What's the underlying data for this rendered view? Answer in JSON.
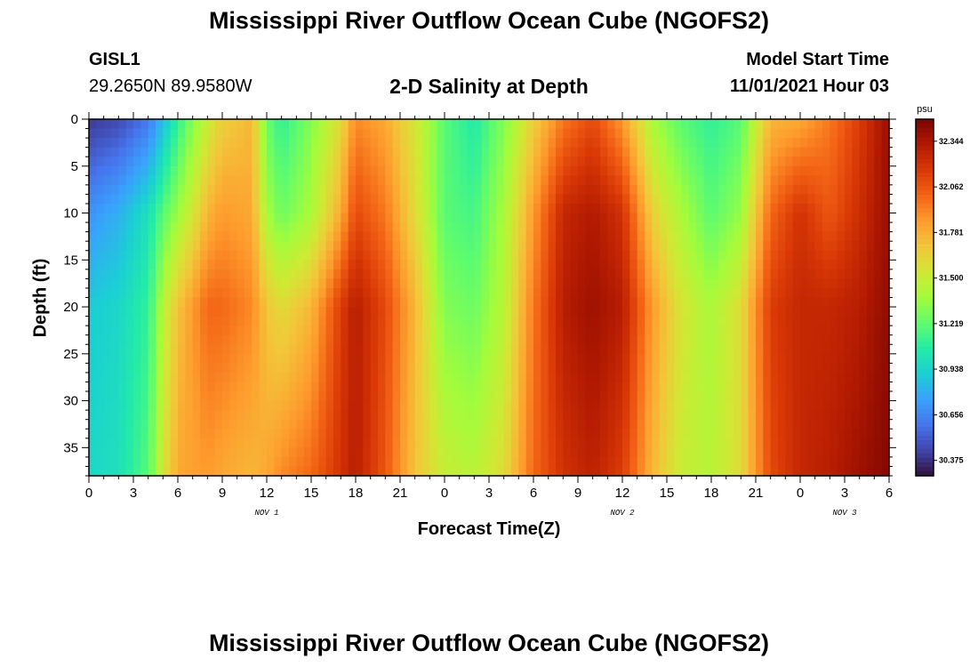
{
  "header": {
    "title": "Mississippi River Outflow Ocean Cube (NGOFS2)",
    "station_id": "GISL1",
    "station_coords": "29.2650N  89.9580W",
    "model_start_label": "Model Start Time",
    "model_start_value": "11/01/2021 Hour 03"
  },
  "footer": {
    "repeat_title": "Mississippi River Outflow Ocean Cube (NGOFS2)"
  },
  "colors": {
    "palette": [
      "#30123b",
      "#4145ab",
      "#4675ed",
      "#39a2fc",
      "#1bcfd4",
      "#24eca6",
      "#61fc6c",
      "#a4fc3b",
      "#d1e834",
      "#f3c63a",
      "#fe9b2d",
      "#f36315",
      "#d93806",
      "#b11901",
      "#7a0402"
    ]
  },
  "chart_data": {
    "type": "heatmap",
    "title": "2-D Salinity at Depth",
    "xlabel": "Forecast Time(Z)",
    "ylabel": "Depth (ft)",
    "x_ticks": [
      "0",
      "3",
      "6",
      "9",
      "12",
      "15",
      "18",
      "21",
      "0",
      "3",
      "6",
      "9",
      "12",
      "15",
      "18",
      "21",
      "0",
      "3",
      "6"
    ],
    "x_range_hours": [
      0,
      54
    ],
    "day_labels": [
      {
        "label": "NOV 1",
        "hour": 12
      },
      {
        "label": "NOV 2",
        "hour": 36
      },
      {
        "label": "NOV 3",
        "hour": 51
      }
    ],
    "y_ticks": [
      "0",
      "5",
      "10",
      "15",
      "20",
      "25",
      "30",
      "35"
    ],
    "y_tick_values": [
      0,
      5,
      10,
      15,
      20,
      25,
      30,
      35
    ],
    "y_range": [
      0,
      38
    ],
    "y_inverted": true,
    "colorbar": {
      "unit": "psu",
      "labels": [
        "32.344",
        "32.062",
        "31.781",
        "31.500",
        "31.219",
        "30.938",
        "30.656",
        "30.375"
      ],
      "range": [
        30.28,
        32.48
      ]
    },
    "salinity_anchors": {
      "depths": [
        0,
        10,
        20,
        38
      ],
      "hours": [
        0,
        2,
        4,
        5,
        6,
        8,
        9,
        11,
        12,
        13,
        15,
        17,
        18,
        20,
        22,
        24,
        26,
        28,
        30,
        32,
        34,
        36,
        38,
        40,
        42,
        44,
        46,
        48,
        50,
        52,
        54
      ],
      "values": [
        [
          30.4,
          30.45,
          30.6,
          30.85,
          31.1,
          31.5,
          31.65,
          31.75,
          31.25,
          31.1,
          31.3,
          31.6,
          31.9,
          31.8,
          31.55,
          31.2,
          31.05,
          31.3,
          31.65,
          31.95,
          32.1,
          31.85,
          31.4,
          31.2,
          31.1,
          31.2,
          31.75,
          31.8,
          31.95,
          32.15,
          32.4
        ],
        [
          30.7,
          30.8,
          31.0,
          31.2,
          31.35,
          31.75,
          31.85,
          31.8,
          31.4,
          31.25,
          31.4,
          31.8,
          32.1,
          31.95,
          31.6,
          31.2,
          31.15,
          31.4,
          31.85,
          32.25,
          32.32,
          32.2,
          31.65,
          31.4,
          31.2,
          31.35,
          32.0,
          32.2,
          32.05,
          32.22,
          32.4
        ],
        [
          30.9,
          30.95,
          31.1,
          31.45,
          31.7,
          32.0,
          32.0,
          31.9,
          31.7,
          31.6,
          31.75,
          32.15,
          32.3,
          32.1,
          31.75,
          31.3,
          31.25,
          31.45,
          31.95,
          32.3,
          32.38,
          32.3,
          31.85,
          31.55,
          31.4,
          31.6,
          32.15,
          32.25,
          32.25,
          32.3,
          32.42
        ],
        [
          30.95,
          31.0,
          31.2,
          31.55,
          31.8,
          31.85,
          31.8,
          31.75,
          31.8,
          31.9,
          32.0,
          32.2,
          32.3,
          32.05,
          31.7,
          31.5,
          31.45,
          31.6,
          32.0,
          32.2,
          32.28,
          32.15,
          31.75,
          31.5,
          31.45,
          31.6,
          32.1,
          32.25,
          32.3,
          32.38,
          32.45
        ]
      ]
    }
  }
}
